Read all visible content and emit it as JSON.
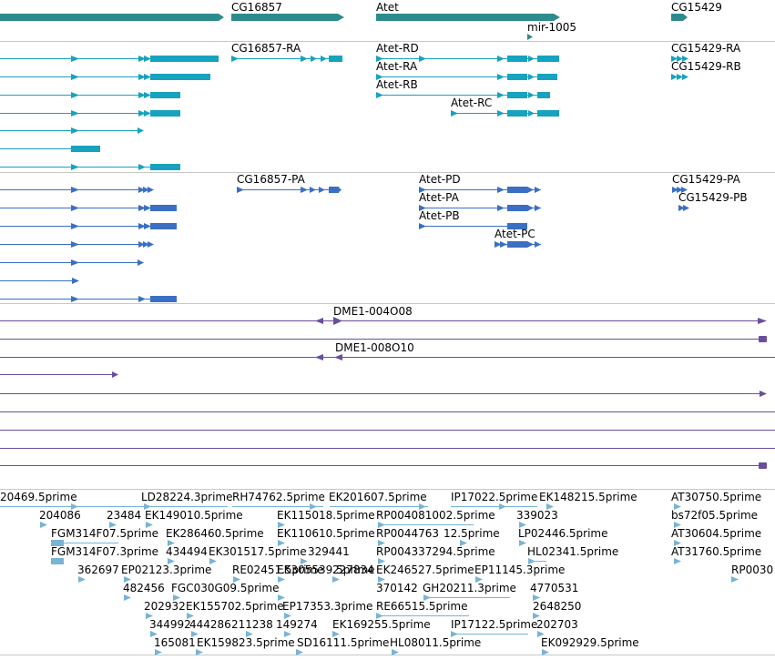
{
  "colors": {
    "genes": "#2e8b8b",
    "transcripts": "#17a2bf",
    "proteins": "#3a6fc4",
    "alignments": "#6b4e9b",
    "ests": "#78b4d6",
    "divider": "#c8c8c8"
  },
  "tracks": {
    "genes": {
      "labels": [
        "CG16857",
        "Atet",
        "mir-1005",
        "CG15429"
      ]
    },
    "transcripts": {
      "labels": [
        "CG16857-RA",
        "Atet-RD",
        "Atet-RA",
        "Atet-RB",
        "Atet-RC",
        "CG15429-RA",
        "CG15429-RB"
      ]
    },
    "proteins": {
      "labels": [
        "CG16857-PA",
        "Atet-PD",
        "Atet-PA",
        "Atet-PB",
        "Atet-PC",
        "CG15429-PA",
        "CG15429-PB"
      ]
    },
    "alignments": {
      "labels": [
        "DME1-004O08",
        "DME1-008O10"
      ]
    },
    "ests": {
      "labels": [
        "20469.5prime",
        "LD28224.3prime",
        "RH74762.5prime",
        "EK201607.5prime",
        "IP17022.5prime",
        "EK148215.5prime",
        "AT30750.5prime",
        "204086",
        "23484",
        "EK149010.5prime",
        "EK115018.5prime",
        "RP004081002.5prime",
        "339023",
        "bs72f05.5prime",
        "FGM314F07.5prime",
        "EK286460.5prime",
        "EK110610.5prime",
        "RP0044763",
        "12.5prime",
        "LP02446.5prime",
        "AT30604.5prime",
        "FGM314F07.3prime",
        "434494",
        "EK301517.5prime",
        "329441",
        "RP004337294.5prime",
        "HL02341.5prime",
        "AT31760.5prime",
        "362697",
        "EP02123.3prime",
        "RE02451.5prime",
        "EK305539.5prime",
        "227834",
        "EK246527.5prime",
        "EP11145.3prime",
        "RP0030",
        "482456",
        "FGC030G09.5prime",
        "370142",
        "GH20211.3prime",
        "4770531",
        "202932",
        "EK155702.5prime",
        "EP17353.3prime",
        "RE66515.5prime",
        "2648250",
        "344992",
        "444286",
        "211238",
        "149274",
        "EK169255.5prime",
        "IP17122.5prime",
        "202703",
        "165081",
        "EK159823.5prime",
        "SD16111.5prime",
        "HL08011.5prime",
        "EK092929.5prime"
      ]
    }
  }
}
